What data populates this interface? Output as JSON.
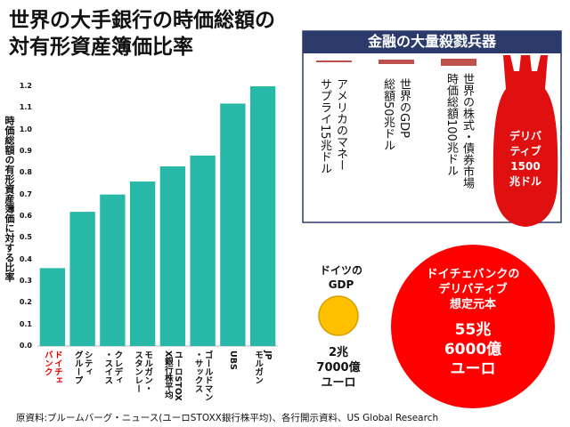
{
  "chart_data": {
    "type": "bar",
    "title": "世界の大手銀行の時価総額の対有形資産簿価比率",
    "y_label": "時価総額の有形資産簿価に対する比率",
    "categories": [
      "ドイチェ\nバンク",
      "シティ\nグループ",
      "クレディ\n・スイス",
      "モルガン・\nスタンレー",
      "ユーロSTOX\nX銀行株平均",
      "ゴールドマン\n・サックス",
      "UBS",
      "JP\nモルガン"
    ],
    "values": [
      0.36,
      0.62,
      0.7,
      0.76,
      0.83,
      0.88,
      1.12,
      1.2
    ],
    "color": "#27b8a8",
    "category_label_colors": [
      "#e60000",
      "#111111",
      "#111111",
      "#111111",
      "#111111",
      "#111111",
      "#111111",
      "#111111"
    ],
    "ylim": [
      0,
      1.2
    ],
    "yticks": [
      {
        "value": 0,
        "label": "0.0"
      },
      0.1,
      0.2,
      0.3,
      0.4,
      0.5,
      0.6,
      0.7,
      0.8,
      0.9,
      {
        "value": 1,
        "label": "1.0"
      },
      1.1,
      1.2
    ]
  },
  "weapons": {
    "title": "金融の大量殺戮兵器",
    "items": [
      "アメリカのマネー\nサプライ15兆ドル",
      "世界のGDP\n総額50兆ドル",
      "世界の株式・債券市場\n時価総額100兆ドル",
      "デリバ\nティブ\n1500\n兆ドル"
    ]
  },
  "germany_gdp": {
    "label": "ドイツの\nGDP",
    "amount": "2兆\n7000億\nユーロ"
  },
  "deutsche_derivatives": {
    "label": "ドイチェバンクの\nデリバティブ\n想定元本",
    "amount": "55兆\n6000億\nユーロ"
  },
  "source": "原資料:ブルームバーグ・ニュース(ユーロSTOXX銀行株平均)、各行開示資料、US Global Research"
}
